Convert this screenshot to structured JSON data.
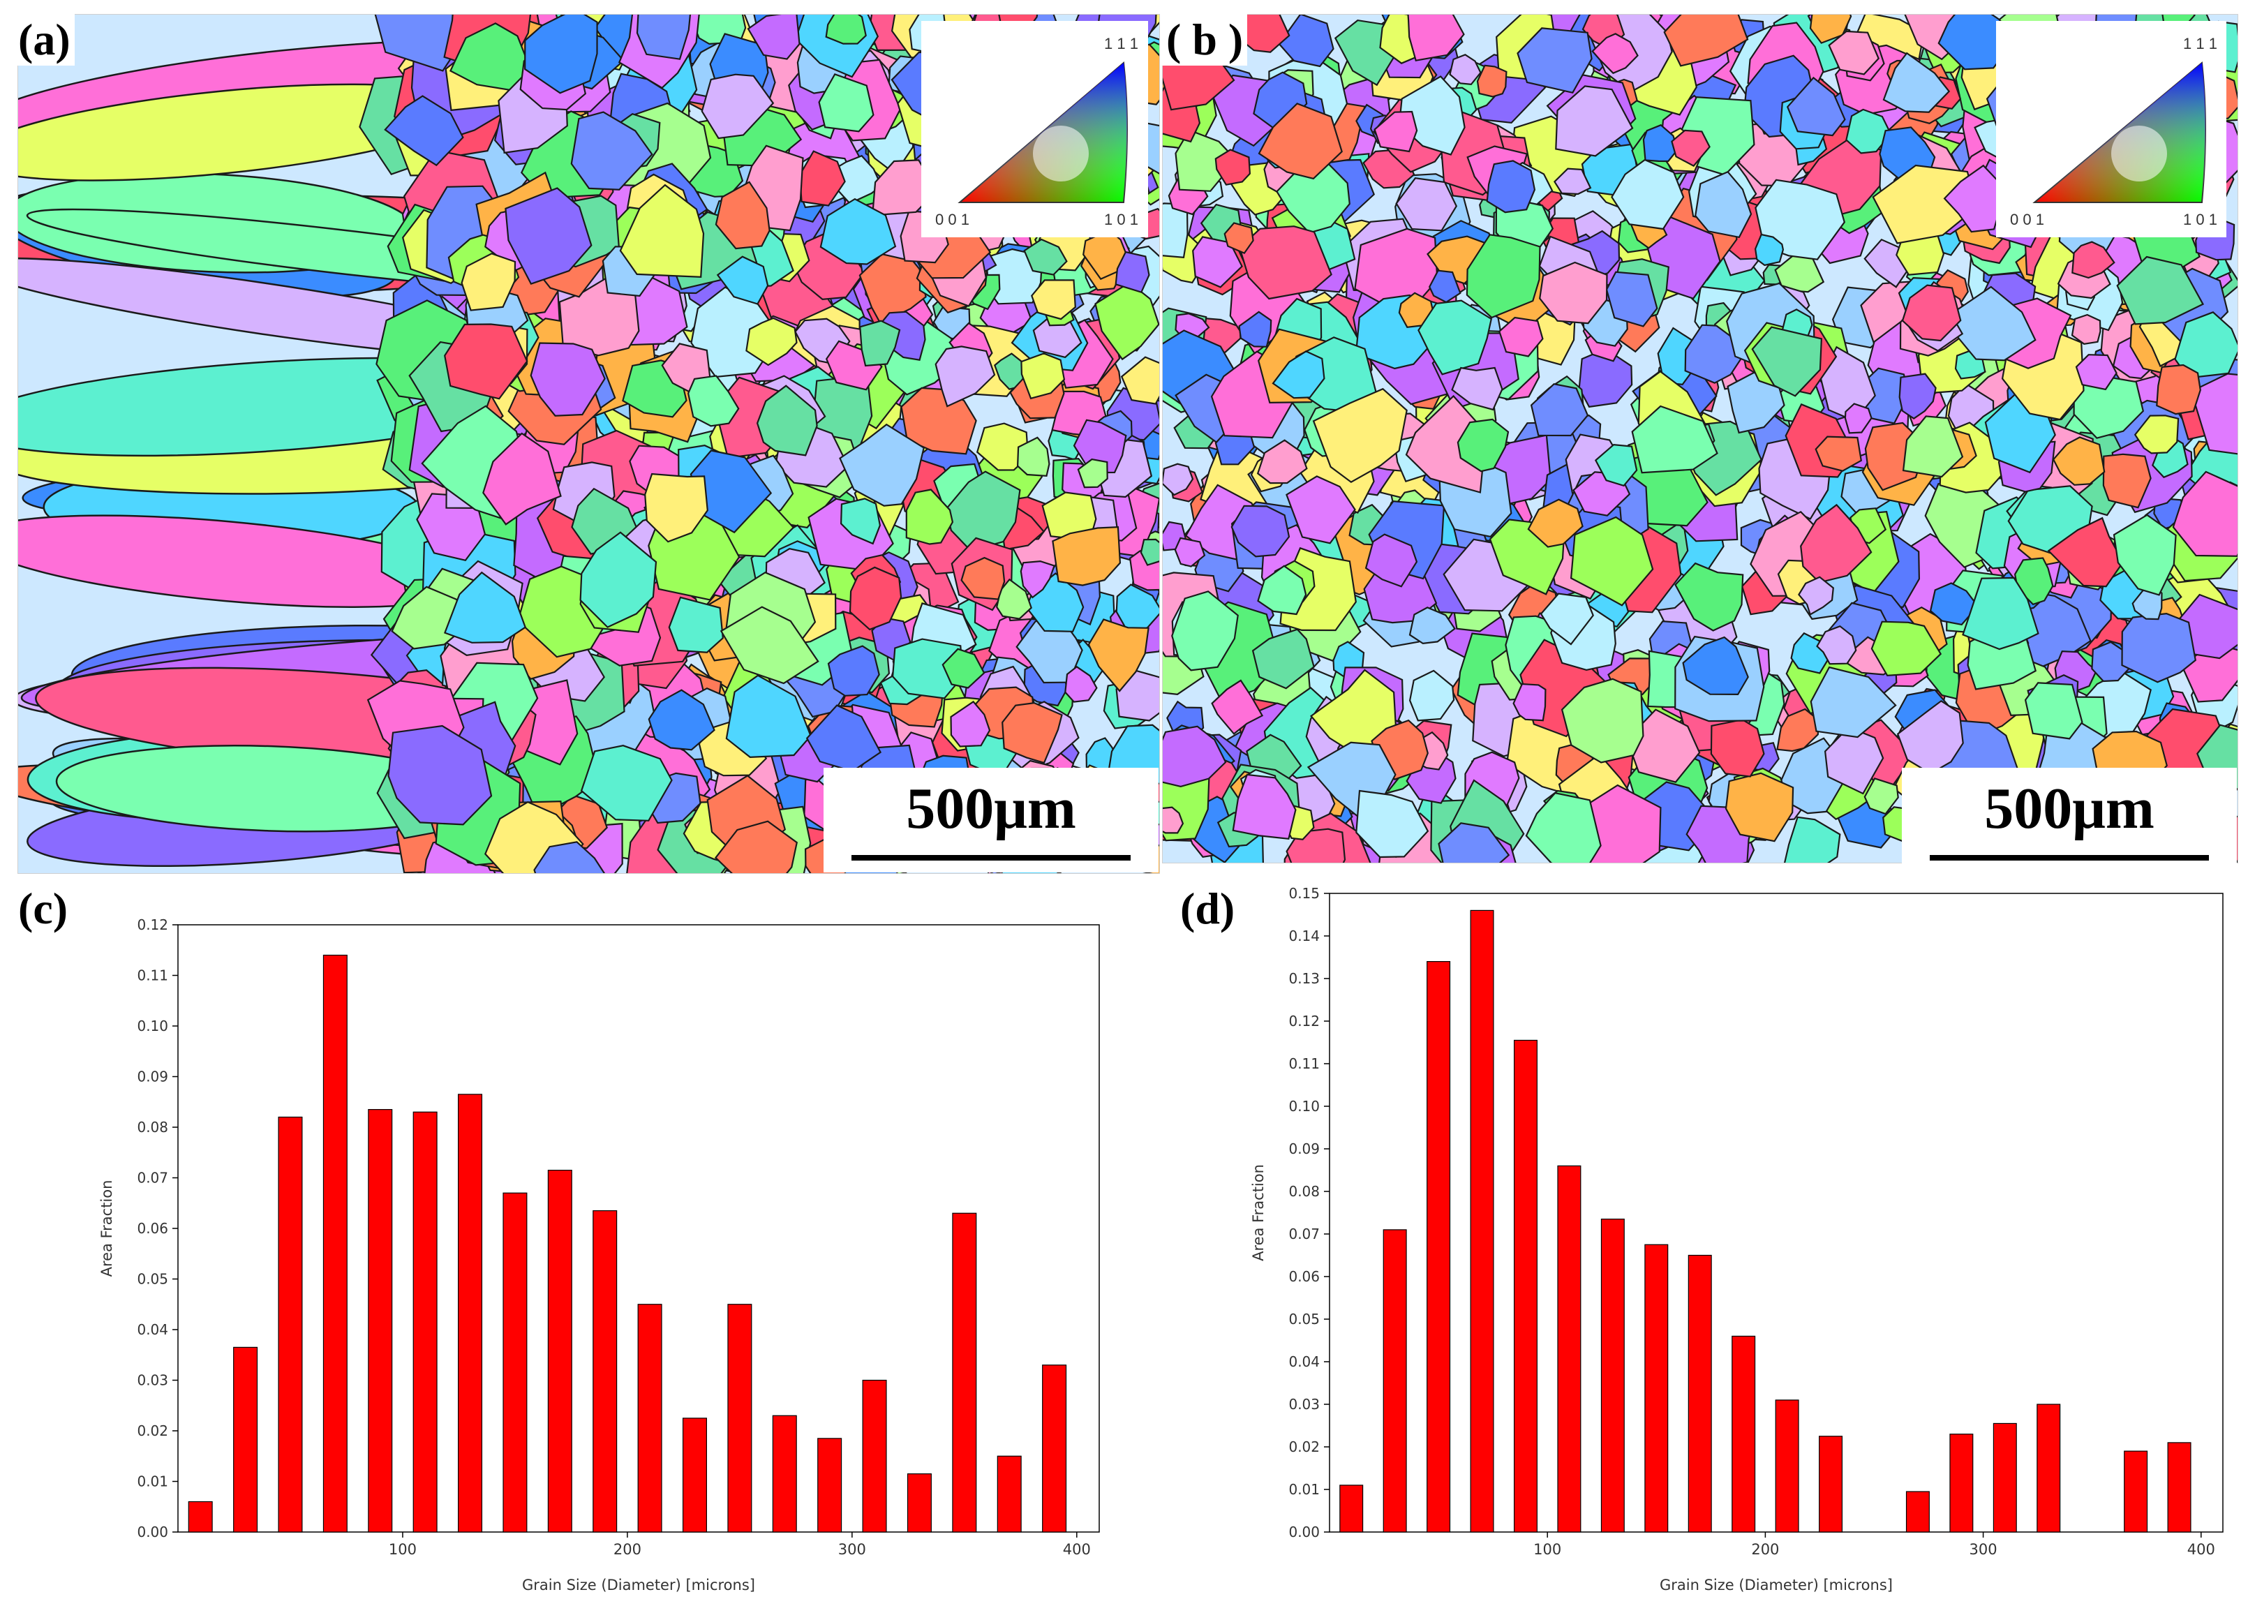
{
  "panels": {
    "a": {
      "label": "(a)",
      "scale_text": "500μm",
      "key_top": "1 1 1",
      "key_left": "0 0 1",
      "key_right": "1 0 1"
    },
    "b": {
      "label": "( b )",
      "scale_text": "500μm",
      "key_top": "1 1 1",
      "key_left": "0 0 1",
      "key_right": "1 0 1"
    },
    "c": {
      "label": "(c)"
    },
    "d": {
      "label": "(d)"
    }
  },
  "chart_data": [
    {
      "id": "c",
      "type": "bar",
      "xlabel": "Grain Size (Diameter) [microns]",
      "ylabel": "Area Fraction",
      "x": [
        10,
        30,
        50,
        70,
        90,
        110,
        130,
        150,
        170,
        190,
        210,
        230,
        250,
        270,
        290,
        310,
        330,
        350,
        370,
        390
      ],
      "values": [
        0.006,
        0.0365,
        0.082,
        0.114,
        0.0835,
        0.083,
        0.0865,
        0.067,
        0.0715,
        0.0635,
        0.045,
        0.0225,
        0.045,
        0.023,
        0.0185,
        0.03,
        0.0115,
        0.063,
        0.015,
        0.033
      ],
      "xlim": [
        0,
        410
      ],
      "ylim": [
        0,
        0.12
      ],
      "xticks": [
        100,
        200,
        300,
        400
      ],
      "yticks": [
        "0.00",
        "0.01",
        "0.02",
        "0.03",
        "0.04",
        "0.05",
        "0.06",
        "0.07",
        "0.08",
        "0.09",
        "0.10",
        "0.11",
        "0.12"
      ],
      "bar_color": "#ff0000",
      "bar_stroke": "#000000",
      "grid": false
    },
    {
      "id": "d",
      "type": "bar",
      "xlabel": "Grain Size (Diameter) [microns]",
      "ylabel": "Area Fraction",
      "x": [
        10,
        30,
        50,
        70,
        90,
        110,
        130,
        150,
        170,
        190,
        210,
        230,
        270,
        290,
        310,
        330,
        370,
        390
      ],
      "values": [
        0.011,
        0.071,
        0.134,
        0.146,
        0.1155,
        0.086,
        0.0735,
        0.0675,
        0.065,
        0.046,
        0.031,
        0.0225,
        0.0095,
        0.023,
        0.0255,
        0.03,
        0.019,
        0.021
      ],
      "xlim": [
        0,
        410
      ],
      "ylim": [
        0,
        0.15
      ],
      "xticks": [
        100,
        200,
        300,
        400
      ],
      "yticks": [
        "0.00",
        "0.01",
        "0.02",
        "0.03",
        "0.04",
        "0.05",
        "0.06",
        "0.07",
        "0.08",
        "0.09",
        "0.10",
        "0.11",
        "0.12",
        "0.13",
        "0.14",
        "0.15"
      ],
      "bar_color": "#ff0000",
      "bar_stroke": "#000000",
      "grid": false
    }
  ]
}
